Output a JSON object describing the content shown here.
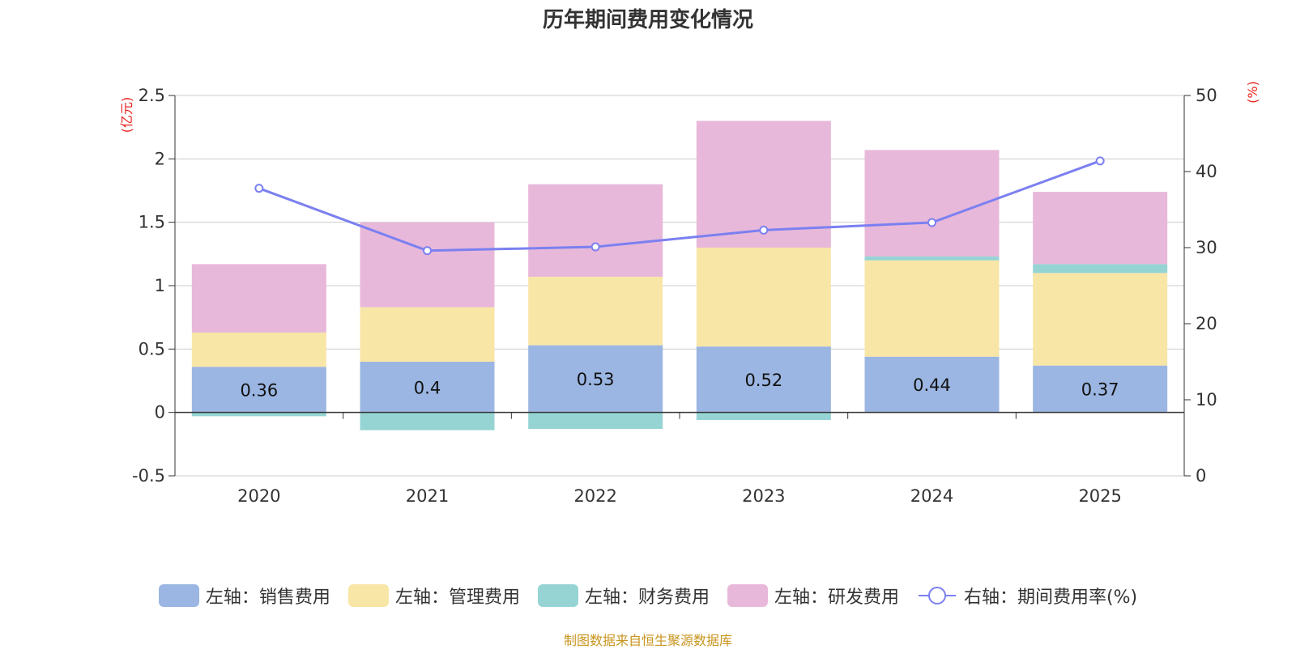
{
  "title": "历年期间费用变化情况",
  "source": "制图数据来自恒生聚源数据库",
  "colors": {
    "sales": "#9bb6e2",
    "admin": "#f8e6a7",
    "finance": "#96d4d4",
    "rnd": "#e8b8da",
    "rate_line": "#7b80f0",
    "unit_red": "#e8231f",
    "source_text": "#c8951e"
  },
  "chart_data": {
    "type": "bar",
    "stacked": true,
    "categories": [
      "2020",
      "2021",
      "2022",
      "2023",
      "2024",
      "2025"
    ],
    "series": [
      {
        "key": "sales",
        "name": "左轴：销售费用",
        "axis": "left",
        "values": [
          0.36,
          0.4,
          0.53,
          0.52,
          0.44,
          0.37
        ],
        "labels": [
          "0.36",
          "0.4",
          "0.53",
          "0.52",
          "0.44",
          "0.37"
        ]
      },
      {
        "key": "admin",
        "name": "左轴：管理费用",
        "axis": "left",
        "values": [
          0.27,
          0.43,
          0.54,
          0.78,
          0.76,
          0.73
        ]
      },
      {
        "key": "finance",
        "name": "左轴：财务费用",
        "axis": "left",
        "values": [
          -0.03,
          -0.14,
          -0.13,
          -0.06,
          0.03,
          0.07
        ]
      },
      {
        "key": "rnd",
        "name": "左轴：研发费用",
        "axis": "left",
        "values": [
          0.54,
          0.67,
          0.73,
          1.0,
          0.84,
          0.57
        ]
      },
      {
        "key": "rate",
        "name": "右轴：期间费用率(%)",
        "axis": "right",
        "type": "line",
        "values": [
          37.8,
          29.6,
          30.1,
          32.3,
          33.3,
          41.4
        ]
      }
    ],
    "left_axis": {
      "unit": "(亿元)",
      "ylim": [
        -0.5,
        2.5
      ],
      "ticks": [
        "-0.5",
        "0",
        "0.5",
        "1",
        "1.5",
        "2",
        "2.5"
      ],
      "tick_values": [
        -0.5,
        0,
        0.5,
        1,
        1.5,
        2,
        2.5
      ]
    },
    "right_axis": {
      "unit": "(%)",
      "ylim": [
        0,
        50
      ],
      "ticks": [
        "0",
        "10",
        "20",
        "30",
        "40",
        "50"
      ],
      "tick_values": [
        0,
        10,
        20,
        30,
        40,
        50
      ]
    },
    "grid": true,
    "legend_position": "bottom"
  }
}
